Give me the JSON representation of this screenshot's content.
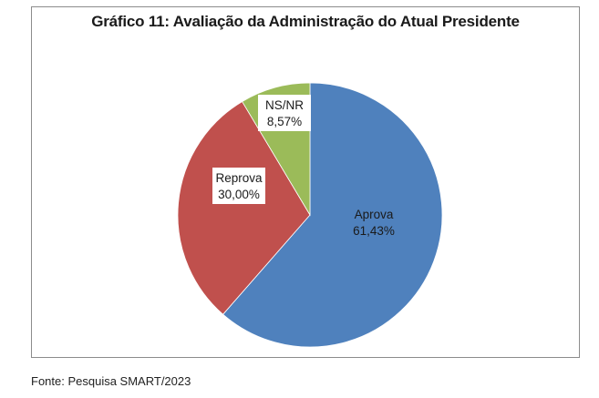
{
  "chart_data": {
    "type": "pie",
    "title": "Gráfico 11: Avaliação da Administração do Atual Presidente",
    "slices": [
      {
        "label": "Aprova",
        "value": 61.43,
        "value_label": "61,43%",
        "color": "#4f81bd"
      },
      {
        "label": "Reprova",
        "value": 30.0,
        "value_label": "30,00%",
        "color": "#c0504d"
      },
      {
        "label": "NS/NR",
        "value": 8.57,
        "value_label": "8,57%",
        "color": "#9bbb59"
      }
    ],
    "legend": "none"
  },
  "source": "Fonte: Pesquisa SMART/2023"
}
